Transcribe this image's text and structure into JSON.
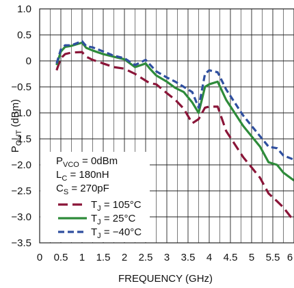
{
  "colors": {
    "series_105": "#8a1538",
    "series_25": "#2e8b3a",
    "series_m40": "#2f4f9f",
    "grid": "#222222",
    "background": "#ffffff"
  },
  "chart_data": {
    "type": "line",
    "xlabel": "FREQUENCY (GHz)",
    "ylabel": {
      "main": "P",
      "sub": "OUT",
      "rest": " (dBm)"
    },
    "xlim": [
      0,
      6
    ],
    "ylim": [
      -3.5,
      1.0
    ],
    "x_ticks": [
      "0",
      "0.5",
      "1",
      "1.5",
      "2",
      "2.5",
      "3",
      "3.5",
      "4",
      "4.5",
      "5",
      "5.5",
      "6"
    ],
    "y_ticks": [
      "1.0",
      "0.5",
      "0",
      "−0.5",
      "−1.0",
      "−1.5",
      "−2.0",
      "−2.5",
      "−3.0",
      "−3.5"
    ],
    "grid": true,
    "conditions": [
      {
        "main": "P",
        "sub": "VCO",
        "rest": " = 0dBm"
      },
      {
        "main": "L",
        "sub": "C",
        "rest": " = 180nH"
      },
      {
        "main": "C",
        "sub": "S",
        "rest": " = 270pF"
      }
    ],
    "legend_position": "bottom-left",
    "series": [
      {
        "name": "T_J = 105°C",
        "label": {
          "main": "T",
          "sub": "J",
          "rest": " = 105°C"
        },
        "style": "dashed-long",
        "color": "#8a1538",
        "x": [
          0.4,
          0.5,
          0.6,
          0.75,
          1.0,
          1.1,
          1.25,
          1.5,
          1.75,
          2.0,
          2.25,
          2.5,
          2.6,
          2.75,
          3.0,
          3.2,
          3.4,
          3.6,
          3.75,
          3.9,
          4.0,
          4.2,
          4.4,
          4.6,
          4.8,
          5.0,
          5.2,
          5.4,
          5.6,
          5.75,
          6.0
        ],
        "y": [
          -0.18,
          0.05,
          0.13,
          0.16,
          0.17,
          0.08,
          0.02,
          -0.05,
          -0.12,
          -0.15,
          -0.25,
          -0.38,
          -0.43,
          -0.45,
          -0.62,
          -0.75,
          -0.92,
          -1.2,
          -1.12,
          -0.9,
          -0.88,
          -0.88,
          -1.35,
          -1.6,
          -1.85,
          -2.05,
          -2.25,
          -2.55,
          -2.7,
          -2.82,
          -3.08
        ]
      },
      {
        "name": "T_J = 25°C",
        "label": {
          "main": "T",
          "sub": "J",
          "rest": " = 25°C"
        },
        "style": "solid",
        "color": "#2e8b3a",
        "x": [
          0.4,
          0.5,
          0.6,
          0.75,
          1.0,
          1.1,
          1.25,
          1.5,
          1.75,
          2.0,
          2.25,
          2.5,
          2.6,
          2.75,
          3.0,
          3.2,
          3.4,
          3.6,
          3.75,
          3.9,
          4.0,
          4.2,
          4.4,
          4.6,
          4.8,
          5.0,
          5.2,
          5.4,
          5.6,
          5.75,
          6.0
        ],
        "y": [
          -0.08,
          0.18,
          0.27,
          0.29,
          0.35,
          0.25,
          0.2,
          0.13,
          0.08,
          0.03,
          -0.12,
          -0.05,
          -0.15,
          -0.28,
          -0.4,
          -0.52,
          -0.6,
          -0.8,
          -1.0,
          -0.5,
          -0.45,
          -0.4,
          -0.75,
          -1.0,
          -1.25,
          -1.45,
          -1.65,
          -1.95,
          -2.0,
          -2.15,
          -2.3
        ]
      },
      {
        "name": "T_J = −40°C",
        "label": {
          "main": "T",
          "sub": "J",
          "rest": " = −40°C"
        },
        "style": "dashed-short",
        "color": "#2f4f9f",
        "x": [
          0.4,
          0.5,
          0.6,
          0.75,
          1.0,
          1.1,
          1.25,
          1.5,
          1.75,
          2.0,
          2.25,
          2.5,
          2.6,
          2.75,
          3.0,
          3.2,
          3.4,
          3.6,
          3.75,
          3.9,
          4.0,
          4.2,
          4.4,
          4.6,
          4.8,
          5.0,
          5.2,
          5.4,
          5.6,
          5.75,
          6.0
        ],
        "y": [
          -0.05,
          0.22,
          0.3,
          0.3,
          0.38,
          0.28,
          0.26,
          0.18,
          0.1,
          0.05,
          -0.08,
          0.02,
          -0.07,
          -0.2,
          -0.32,
          -0.4,
          -0.5,
          -0.6,
          -0.9,
          -0.25,
          -0.18,
          -0.22,
          -0.55,
          -0.8,
          -1.05,
          -1.25,
          -1.45,
          -1.65,
          -1.68,
          -1.82,
          -1.9
        ]
      }
    ]
  }
}
